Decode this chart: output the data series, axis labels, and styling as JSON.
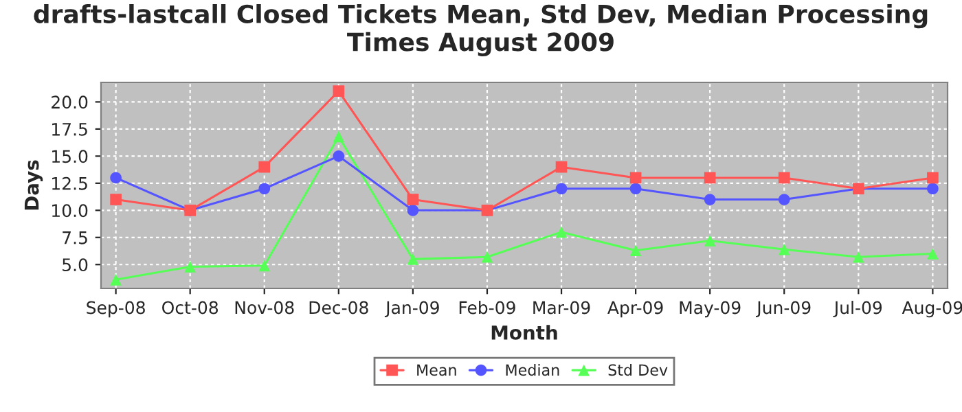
{
  "chart_data": {
    "type": "line",
    "title": "drafts-lastcall Closed Tickets Mean, Std Dev, Median Processing Times August 2009",
    "xlabel": "Month",
    "ylabel": "Days",
    "categories": [
      "Sep-08",
      "Oct-08",
      "Nov-08",
      "Dec-08",
      "Jan-09",
      "Feb-09",
      "Mar-09",
      "Apr-09",
      "May-09",
      "Jun-09",
      "Jul-09",
      "Aug-09"
    ],
    "series": [
      {
        "name": "Mean",
        "color": "#ff5555",
        "marker": "square",
        "values": [
          11,
          10,
          14,
          21,
          11,
          10,
          14,
          13,
          13,
          13,
          12,
          13
        ]
      },
      {
        "name": "Median",
        "color": "#5555ff",
        "marker": "circle",
        "values": [
          13,
          10,
          12,
          15,
          10,
          10,
          12,
          12,
          11,
          11,
          12,
          12
        ]
      },
      {
        "name": "Std Dev",
        "color": "#55ff55",
        "marker": "triangle",
        "values": [
          3.6,
          4.8,
          4.9,
          16.8,
          5.5,
          5.7,
          8.0,
          6.3,
          7.2,
          6.4,
          5.7,
          6.0
        ]
      }
    ],
    "ylim": [
      2.8,
      21.8
    ],
    "yticks": [
      {
        "value": 5,
        "label": "5.0"
      },
      {
        "value": 7.5,
        "label": "7.5"
      },
      {
        "value": 10,
        "label": "10.0"
      },
      {
        "value": 12.5,
        "label": "12.5"
      },
      {
        "value": 15,
        "label": "15.0"
      },
      {
        "value": 17.5,
        "label": "17.5"
      },
      {
        "value": 20,
        "label": "20.0"
      }
    ],
    "grid": true,
    "legend": "bottom",
    "line_style": "solid"
  }
}
